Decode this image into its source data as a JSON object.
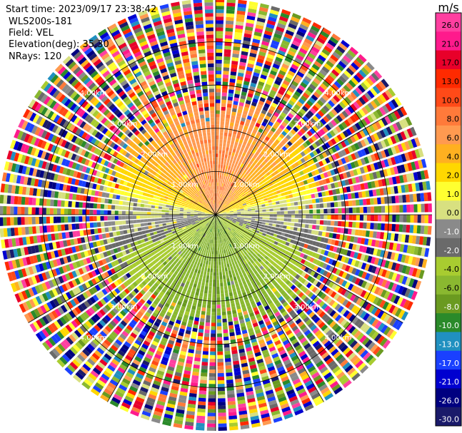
{
  "header": {
    "start_time": "Start time: 2023/09/17 23:38:42",
    "instrument": "WLS200s-181",
    "field": "Field: VEL",
    "elevation": "Elevation(deg): 35.30",
    "nrays": "NRays: 120"
  },
  "colorbar": {
    "unit": "m/s",
    "ticks": [
      "26.0",
      "21.0",
      "17.0",
      "13.0",
      "10.0",
      "8.0",
      "6.0",
      "4.0",
      "2.0",
      "1.0",
      "0.0",
      "-1.0",
      "-2.0",
      "-4.0",
      "-6.0",
      "-8.0",
      "-10.0",
      "-13.0",
      "-17.0",
      "-21.0",
      "-26.0",
      "-30.0"
    ],
    "colors": [
      "#ff3fa0",
      "#ff1a8c",
      "#e8002a",
      "#ff2a00",
      "#ff4a18",
      "#ff7a3a",
      "#ff9a50",
      "#ffb020",
      "#ffd700",
      "#ffff30",
      "#d8e080",
      "#8a8a8a",
      "#6a6a6a",
      "#a8cc30",
      "#8ab830",
      "#6a9a20",
      "#2a8a2a",
      "#2090c0",
      "#1a40ff",
      "#0000d0",
      "#000080",
      "#1a1a6a"
    ]
  },
  "chart_data": {
    "type": "ppi",
    "field": "VEL",
    "unit": "m/s",
    "nrays": 120,
    "elevation_deg": 35.3,
    "range_rings_km": [
      1.0,
      2.0,
      3.0,
      4.0
    ],
    "ring_labels": [
      "1.00km",
      "2.00km",
      "3.00km",
      "4.00km"
    ],
    "max_range_km": 5.0,
    "velocity_scale": [
      26.0,
      21.0,
      17.0,
      13.0,
      10.0,
      8.0,
      6.0,
      4.0,
      2.0,
      1.0,
      0.0,
      -1.0,
      -2.0,
      -4.0,
      -6.0,
      -8.0,
      -10.0,
      -13.0,
      -17.0,
      -21.0,
      -26.0,
      -30.0
    ],
    "pattern": {
      "north_core_velocity": 8.0,
      "south_core_velocity": -6.0,
      "near_zero_band": "east-west",
      "noise_beyond_km": 2.6
    }
  }
}
